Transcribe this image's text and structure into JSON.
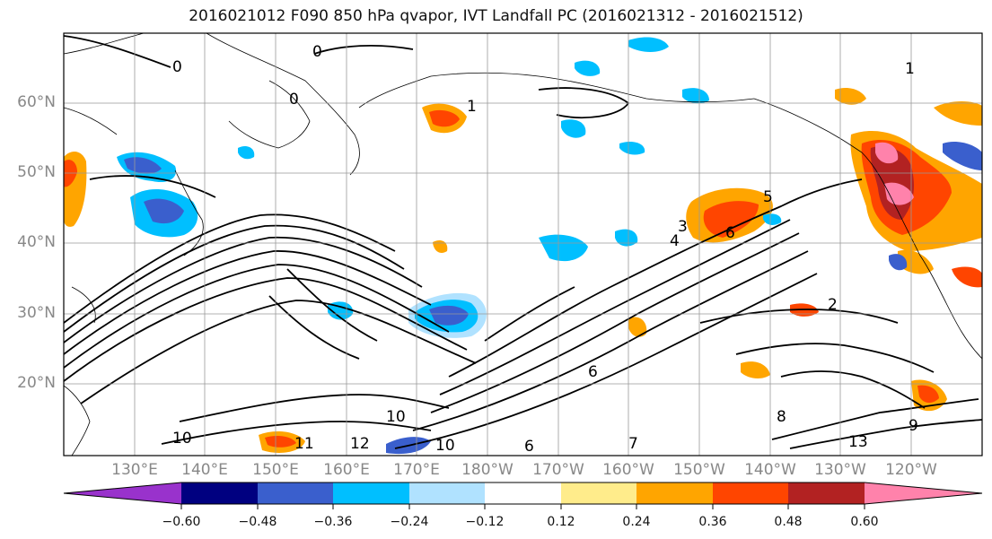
{
  "title": "2016021012 F090 850 hPa qvapor, IVT Landfall PC (2016021312 - 2016021512)",
  "lat_labels": [
    "60°N",
    "50°N",
    "40°N",
    "30°N",
    "20°N"
  ],
  "lon_labels": [
    "130°E",
    "140°E",
    "150°E",
    "160°E",
    "170°E",
    "180°W",
    "170°W",
    "160°W",
    "150°W",
    "140°W",
    "130°W",
    "120°W"
  ],
  "contour_labels": [
    "0",
    "0",
    "0",
    "1",
    "1",
    "2",
    "3",
    "4",
    "5",
    "6",
    "6",
    "6",
    "7",
    "8",
    "9",
    "10",
    "10",
    "10",
    "11",
    "12",
    "13"
  ],
  "colorbar": {
    "ticks": [
      "−0.60",
      "−0.48",
      "−0.36",
      "−0.24",
      "−0.12",
      "0.12",
      "0.24",
      "0.36",
      "0.48",
      "0.60"
    ],
    "colors": [
      "#9932cc",
      "#000080",
      "#3a5fcd",
      "#00bfff",
      "#b0e2ff",
      "#ffffff",
      "#ffec8b",
      "#ffa500",
      "#ff4500",
      "#b22222",
      "#ff82ab"
    ]
  },
  "fill_colors": {
    "neg_light": "#b0e2ff",
    "neg_mid": "#00bfff",
    "neg_dark": "#3a5fcd",
    "neg_deep": "#000080",
    "neg_extreme": "#9932cc",
    "pos_light": "#ffec8b",
    "pos_mid": "#ffa500",
    "pos_strong": "#ff4500",
    "pos_deep": "#b22222",
    "pos_extreme": "#ff82ab"
  }
}
